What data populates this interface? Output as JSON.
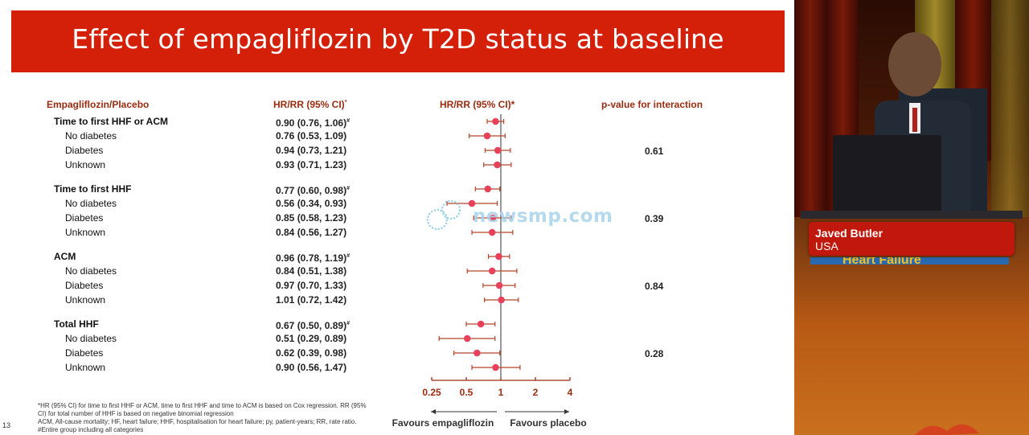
{
  "slide": {
    "title": "Effect of empagliflozin by T2D status at baseline",
    "page_number": "13",
    "col_header_group": "Empagliflozin/Placebo",
    "col_header_hr": "HR/RR (95% CI)",
    "col_header_hr_sup": "*",
    "col_header_plot": "HR/RR (95% CI)*",
    "col_header_p": "p-value for interaction",
    "favours_left": "Favours empagliflozin",
    "favours_right": "Favours placebo",
    "footnote_1": "*HR (95% CI) for time to first HHF or ACM, time to first HHF and time to ACM is based on Cox regression. RR (95% CI) for total number of HHF is based on negative binomial regression",
    "footnote_2": "ACM, All-cause mortality; HF, heart failure; HHF, hospitalisation for heart failure; py, patient-years; RR, rate ratio. #Entire group including all categories",
    "watermark": "newsmp.com"
  },
  "chart_data": {
    "type": "forest",
    "x_scale": "log",
    "xlim": [
      0.25,
      4
    ],
    "x_ticks": [
      "0.25",
      "0.5",
      "1",
      "2",
      "4"
    ],
    "reference_line": 1,
    "rows": [
      {
        "label": "Time to first HHF or ACM",
        "is_group": true,
        "hr": 0.9,
        "lo": 0.76,
        "hi": 1.06,
        "text": "0.90 (0.76, 1.06)",
        "mark": "#"
      },
      {
        "label": "No diabetes",
        "hr": 0.76,
        "lo": 0.53,
        "hi": 1.09,
        "text": "0.76 (0.53, 1.09)"
      },
      {
        "label": "Diabetes",
        "hr": 0.94,
        "lo": 0.73,
        "hi": 1.21,
        "text": "0.94 (0.73, 1.21)",
        "p": "0.61"
      },
      {
        "label": "Unknown",
        "hr": 0.93,
        "lo": 0.71,
        "hi": 1.23,
        "text": "0.93 (0.71, 1.23)"
      },
      {
        "label": "Time to first HHF",
        "is_group": true,
        "hr": 0.77,
        "lo": 0.6,
        "hi": 0.98,
        "text": "0.77 (0.60, 0.98)",
        "mark": "#"
      },
      {
        "label": "No diabetes",
        "hr": 0.56,
        "lo": 0.34,
        "hi": 0.93,
        "text": "0.56 (0.34, 0.93)"
      },
      {
        "label": "Diabetes",
        "hr": 0.85,
        "lo": 0.58,
        "hi": 1.23,
        "text": "0.85 (0.58, 1.23)",
        "p": "0.39"
      },
      {
        "label": "Unknown",
        "hr": 0.84,
        "lo": 0.56,
        "hi": 1.27,
        "text": "0.84 (0.56, 1.27)"
      },
      {
        "label": "ACM",
        "is_group": true,
        "hr": 0.96,
        "lo": 0.78,
        "hi": 1.19,
        "text": "0.96 (0.78, 1.19)",
        "mark": "#"
      },
      {
        "label": "No diabetes",
        "hr": 0.84,
        "lo": 0.51,
        "hi": 1.38,
        "text": "0.84 (0.51, 1.38)"
      },
      {
        "label": "Diabetes",
        "hr": 0.97,
        "lo": 0.7,
        "hi": 1.33,
        "text": "0.97 (0.70, 1.33)",
        "p": "0.84"
      },
      {
        "label": "Unknown",
        "hr": 1.01,
        "lo": 0.72,
        "hi": 1.42,
        "text": "1.01 (0.72, 1.42)"
      },
      {
        "label": "Total HHF",
        "is_group": true,
        "hr": 0.67,
        "lo": 0.5,
        "hi": 0.89,
        "text": "0.67 (0.50, 0.89)",
        "mark": "#"
      },
      {
        "label": "No diabetes",
        "hr": 0.51,
        "lo": 0.29,
        "hi": 0.89,
        "text": "0.51 (0.29, 0.89)"
      },
      {
        "label": "Diabetes",
        "hr": 0.62,
        "lo": 0.39,
        "hi": 0.98,
        "text": "0.62 (0.39, 0.98)",
        "p": "0.28"
      },
      {
        "label": "Unknown",
        "hr": 0.9,
        "lo": 0.56,
        "hi": 1.47,
        "text": "0.90 (0.56, 1.47)"
      }
    ]
  },
  "speaker": {
    "name": "Javed Butler",
    "country": "USA",
    "backdrop_text": "Heart Failure"
  },
  "colors": {
    "title_bar": "#d42008",
    "header_text": "#9b2b10",
    "marker": "#e8415a",
    "ci_line": "#b5452a",
    "axis": "#9b2b10",
    "nameplate": "#c0180c"
  }
}
